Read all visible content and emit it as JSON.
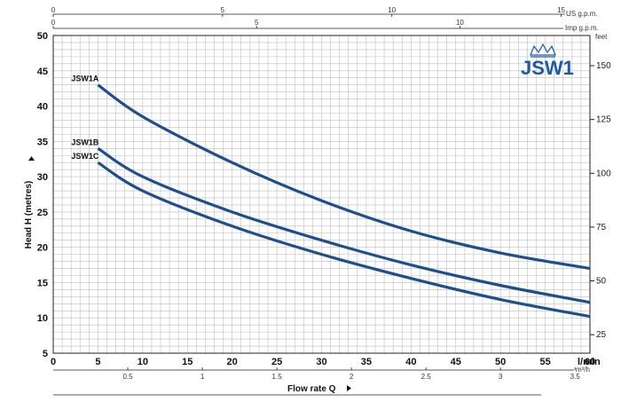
{
  "chart_data": {
    "type": "line",
    "logo_text": "JSW1",
    "xlabel": "Flow rate Q",
    "ylabel": "Head H (metres)",
    "x_unit": "l/min",
    "x_range": [
      0,
      60
    ],
    "x_ticks": [
      0,
      5,
      10,
      15,
      20,
      25,
      30,
      35,
      40,
      45,
      50,
      55,
      60
    ],
    "y_range": [
      5,
      50
    ],
    "y_ticks": [
      5,
      10,
      15,
      20,
      25,
      30,
      35,
      40,
      45,
      50
    ],
    "grid": true,
    "right_axis": {
      "unit": "feet",
      "ticks": [
        25,
        50,
        75,
        100,
        125,
        150
      ]
    },
    "top_axis_usgpm": {
      "unit": "US g.p.m.",
      "ticks": [
        0,
        5,
        10,
        15
      ]
    },
    "top_axis_impgpm": {
      "unit": "Imp g.p.m.",
      "ticks": [
        0,
        5,
        10
      ]
    },
    "bottom_axis_m3h": {
      "unit": "m³/h",
      "ticks": [
        "0.5",
        "1",
        "1.5",
        "2",
        "2.5",
        "3",
        "3.5"
      ]
    },
    "series": [
      {
        "name": "JSW1A",
        "x": [
          5,
          10,
          20,
          30,
          40,
          50,
          60
        ],
        "y": [
          43,
          38.5,
          32,
          26.6,
          22.3,
          19.2,
          17.0
        ]
      },
      {
        "name": "JSW1B",
        "x": [
          5,
          10,
          20,
          30,
          40,
          50,
          60
        ],
        "y": [
          34,
          30,
          25,
          21,
          17.5,
          14.6,
          12.2
        ]
      },
      {
        "name": "JSW1C",
        "x": [
          5,
          10,
          20,
          30,
          40,
          50,
          60
        ],
        "y": [
          32,
          28,
          23,
          19,
          15.6,
          12.6,
          10.2
        ]
      }
    ],
    "colors": {
      "curve": "#1f4e8c",
      "grid": "#bdbdbd",
      "logo": "#1f5aa6"
    }
  }
}
